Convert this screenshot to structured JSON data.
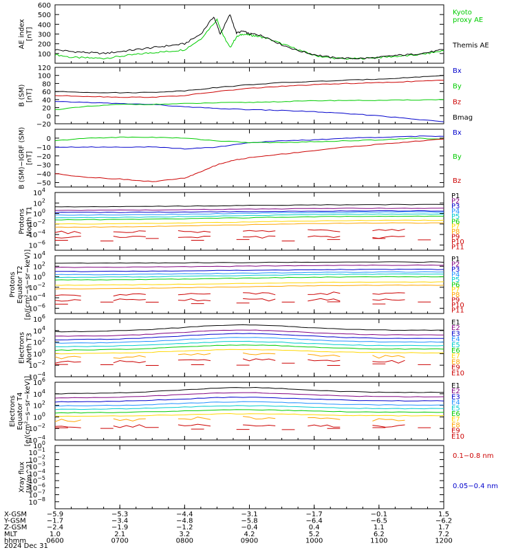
{
  "chart_data": [
    {
      "type": "line",
      "ylabel_lines": [
        "AE index",
        "[nT]"
      ],
      "ylim": [
        0,
        600
      ],
      "yticks": [
        100,
        200,
        300,
        400,
        500,
        600
      ],
      "ytick_labels": [
        "100",
        "200",
        "300",
        "400",
        "500",
        "600"
      ],
      "legend_placement": "right",
      "series": [
        {
          "name": "Kyoto proxy AE",
          "label_lines": [
            "Kyoto",
            "proxy AE"
          ],
          "color": "#00cc00",
          "x": [
            6.0,
            6.25,
            6.5,
            6.75,
            7.0,
            7.25,
            7.5,
            7.75,
            8.0,
            8.25,
            8.5,
            8.6,
            8.7,
            8.8,
            8.9,
            9.0,
            9.1,
            9.25,
            9.5,
            9.75,
            10.0,
            10.25,
            10.5,
            10.75,
            11.0,
            11.25,
            11.5,
            11.75,
            12.0
          ],
          "y": [
            90,
            60,
            55,
            50,
            70,
            90,
            110,
            120,
            140,
            250,
            450,
            280,
            160,
            270,
            300,
            290,
            280,
            260,
            200,
            140,
            80,
            55,
            45,
            50,
            60,
            70,
            80,
            100,
            130
          ]
        },
        {
          "name": "Themis AE",
          "label_lines": [
            "Themis AE"
          ],
          "color": "#000000",
          "x": [
            6.0,
            6.25,
            6.5,
            6.75,
            7.0,
            7.25,
            7.5,
            7.75,
            8.0,
            8.25,
            8.45,
            8.55,
            8.7,
            8.8,
            8.9,
            9.0,
            9.1,
            9.25,
            9.5,
            9.75,
            10.0,
            10.25,
            10.5,
            10.75,
            11.0,
            11.25,
            11.5,
            11.75,
            12.0
          ],
          "y": [
            140,
            120,
            110,
            100,
            120,
            140,
            160,
            180,
            200,
            300,
            480,
            300,
            500,
            310,
            330,
            300,
            300,
            270,
            190,
            130,
            90,
            60,
            50,
            50,
            60,
            80,
            90,
            110,
            140
          ]
        }
      ]
    },
    {
      "type": "line",
      "ylabel_lines": [
        "B (SM)",
        "[nT]"
      ],
      "ylim": [
        -20,
        120
      ],
      "yticks": [
        -20,
        0,
        20,
        40,
        60,
        80,
        100,
        120
      ],
      "ytick_labels": [
        "−20",
        "0",
        "20",
        "40",
        "60",
        "80",
        "100",
        "120"
      ],
      "legend_placement": "right",
      "series": [
        {
          "name": "Bx",
          "label_lines": [
            "Bx"
          ],
          "color": "#0000cc",
          "x": [
            6.0,
            6.5,
            7.0,
            7.5,
            8.0,
            8.5,
            9.0,
            9.5,
            10.0,
            10.5,
            11.0,
            11.5,
            12.0
          ],
          "y": [
            35,
            33,
            30,
            28,
            22,
            18,
            15,
            13,
            10,
            5,
            0,
            -8,
            -15
          ]
        },
        {
          "name": "By",
          "label_lines": [
            "By"
          ],
          "color": "#00cc00",
          "x": [
            6.0,
            6.5,
            7.0,
            7.5,
            8.0,
            8.5,
            9.0,
            9.5,
            10.0,
            10.5,
            11.0,
            11.5,
            12.0
          ],
          "y": [
            15,
            23,
            28,
            28,
            30,
            32,
            33,
            35,
            37,
            38,
            38,
            39,
            40
          ]
        },
        {
          "name": "Bz",
          "label_lines": [
            "Bz"
          ],
          "color": "#cc0000",
          "x": [
            6.0,
            6.5,
            7.0,
            7.5,
            8.0,
            8.5,
            9.0,
            9.5,
            10.0,
            10.5,
            11.0,
            11.5,
            12.0
          ],
          "y": [
            50,
            48,
            46,
            46,
            50,
            60,
            68,
            73,
            77,
            80,
            82,
            85,
            88
          ]
        },
        {
          "name": "Bmag",
          "label_lines": [
            "Bmag"
          ],
          "color": "#000000",
          "x": [
            6.0,
            6.5,
            7.0,
            7.5,
            8.0,
            8.5,
            9.0,
            9.5,
            10.0,
            10.5,
            11.0,
            11.5,
            12.0
          ],
          "y": [
            60,
            58,
            57,
            58,
            62,
            70,
            77,
            82,
            85,
            88,
            91,
            95,
            100
          ]
        }
      ]
    },
    {
      "type": "line",
      "ylabel_lines": [
        "B (SM)−IGRF (SM)",
        "[nT]"
      ],
      "ylim": [
        -55,
        10
      ],
      "yticks": [
        -50,
        -40,
        -30,
        -20,
        -10,
        0
      ],
      "ytick_labels": [
        "−50",
        "−40",
        "−30",
        "−20",
        "−10",
        "0"
      ],
      "legend_placement": "right",
      "series": [
        {
          "name": "Bx",
          "label_lines": [
            "Bx"
          ],
          "color": "#0000cc",
          "x": [
            6.0,
            6.5,
            7.0,
            7.5,
            8.0,
            8.5,
            9.0,
            9.5,
            10.0,
            10.5,
            11.0,
            11.5,
            12.0
          ],
          "y": [
            -10,
            -10,
            -10,
            -10,
            -12,
            -10,
            -5,
            -3,
            -2,
            0,
            1,
            2,
            2
          ]
        },
        {
          "name": "By",
          "label_lines": [
            "By"
          ],
          "color": "#00cc00",
          "x": [
            6.0,
            6.5,
            7.0,
            7.5,
            8.0,
            8.5,
            9.0,
            9.5,
            10.0,
            10.5,
            11.0,
            11.5,
            12.0
          ],
          "y": [
            -3,
            0,
            1,
            1,
            0,
            -3,
            -5,
            -5,
            -4,
            -3,
            -2,
            0,
            -1
          ]
        },
        {
          "name": "Bz",
          "label_lines": [
            "Bz"
          ],
          "color": "#cc0000",
          "x": [
            6.0,
            6.5,
            7.0,
            7.5,
            8.0,
            8.25,
            8.5,
            8.75,
            9.0,
            9.5,
            10.0,
            10.5,
            11.0,
            11.5,
            12.0
          ],
          "y": [
            -40,
            -44,
            -46,
            -49,
            -45,
            -38,
            -30,
            -25,
            -22,
            -18,
            -14,
            -10,
            -7,
            -4,
            -1
          ]
        }
      ]
    },
    {
      "type": "line",
      "ylabel_lines": [
        "Protons",
        "North T1"
      ],
      "log_scale": true,
      "ylim_exponents": [
        -7,
        4
      ],
      "tick_exponents": [
        4,
        2,
        0,
        -2,
        -4,
        -6
      ],
      "ytick_labels": [
        "10",
        "10",
        "10",
        "10",
        "10",
        "10"
      ],
      "ytick_superscripts": [
        "4",
        "2",
        "0",
        "−2",
        "−4",
        "−6"
      ],
      "legend_placement": "right",
      "channel_names": [
        "P1",
        "P2",
        "P3",
        "P4",
        "P5",
        "P6",
        "P7",
        "P8",
        "P9",
        "P10",
        "P11"
      ],
      "channel_colors": [
        "#000000",
        "#800080",
        "#0000cc",
        "#1e90ff",
        "#00cccc",
        "#00cc00",
        "#ffd700",
        "#ffa500",
        "#cc0000",
        "#cc0000",
        "#cc0000"
      ],
      "channel_log_levels": [
        [
          1.3,
          1.7
        ],
        [
          0.6,
          1.0
        ],
        [
          0.2,
          0.5
        ],
        [
          -0.3,
          0.3
        ],
        [
          -0.8,
          -0.1
        ],
        [
          -1.2,
          -0.5
        ],
        [
          -2.0,
          -1.3
        ],
        [
          -2.6,
          -1.8
        ],
        [
          -3.6,
          -3.2
        ],
        [
          -4.5,
          -4.5
        ],
        [
          -5.0,
          -5.0
        ]
      ]
    },
    {
      "type": "line",
      "ylabel_lines": [
        "Protons",
        "Equator T2",
        "[p/(cm²−s−sr−keV)]"
      ],
      "log_scale": true,
      "ylim_exponents": [
        -7,
        4
      ],
      "tick_exponents": [
        4,
        2,
        0,
        -2,
        -4,
        -6
      ],
      "ytick_labels": [
        "10",
        "10",
        "10",
        "10",
        "10",
        "10"
      ],
      "ytick_superscripts": [
        "4",
        "2",
        "0",
        "−2",
        "−4",
        "−6"
      ],
      "legend_placement": "right",
      "channel_names": [
        "P1",
        "P2",
        "P3",
        "P4",
        "P5",
        "P6",
        "P7",
        "P8",
        "P9",
        "P10",
        "P11"
      ],
      "channel_colors": [
        "#000000",
        "#800080",
        "#0000cc",
        "#1e90ff",
        "#00cccc",
        "#00cc00",
        "#ffd700",
        "#ffa500",
        "#cc0000",
        "#cc0000",
        "#cc0000"
      ],
      "channel_log_levels": [
        [
          2.6,
          2.8
        ],
        [
          1.8,
          2.2
        ],
        [
          1.0,
          1.4
        ],
        [
          0.4,
          0.9
        ],
        [
          -0.1,
          0.5
        ],
        [
          -0.6,
          0.0
        ],
        [
          -1.6,
          -1.0
        ],
        [
          -2.3,
          -1.6
        ],
        [
          -3.5,
          -3.1
        ],
        [
          -4.4,
          -4.4
        ],
        [
          -5.0,
          -5.0
        ]
      ]
    },
    {
      "type": "line",
      "ylabel_lines": [
        "Electrons",
        "North T3"
      ],
      "log_scale": true,
      "ylim_exponents": [
        -4,
        6
      ],
      "tick_exponents": [
        6,
        4,
        2,
        0,
        -2,
        -4
      ],
      "ytick_labels": [
        "10",
        "10",
        "10",
        "10",
        "10",
        "10"
      ],
      "ytick_superscripts": [
        "6",
        "4",
        "2",
        "0",
        "−2",
        "−4"
      ],
      "legend_placement": "right",
      "channel_names": [
        "E1",
        "E2",
        "E3",
        "E4",
        "E5",
        "E6",
        "E7",
        "E8",
        "E9",
        "E10"
      ],
      "channel_colors": [
        "#000000",
        "#800080",
        "#0000cc",
        "#1e90ff",
        "#00cccc",
        "#00cc00",
        "#ffd700",
        "#ffa500",
        "#cc0000",
        "#cc0000"
      ],
      "channel_log_levels": [
        [
          3.8,
          5.1
        ],
        [
          3.0,
          4.2
        ],
        [
          2.4,
          3.6
        ],
        [
          1.8,
          2.9
        ],
        [
          1.2,
          2.2
        ],
        [
          0.6,
          1.6
        ],
        [
          0.0,
          0.8
        ],
        [
          -0.7,
          0.0
        ],
        [
          -1.5,
          -1.0
        ],
        [
          -1.8,
          -1.8
        ]
      ]
    },
    {
      "type": "line",
      "ylabel_lines": [
        "Electrons",
        "Equator T4",
        "[e/(cm²−s−sr−keV)]"
      ],
      "log_scale": true,
      "ylim_exponents": [
        -4,
        6
      ],
      "tick_exponents": [
        6,
        4,
        2,
        0,
        -2,
        -4
      ],
      "ytick_labels": [
        "10",
        "10",
        "10",
        "10",
        "10",
        "10"
      ],
      "ytick_superscripts": [
        "6",
        "4",
        "2",
        "0",
        "−2",
        "−4"
      ],
      "legend_placement": "right",
      "channel_names": [
        "E1",
        "E2",
        "E3",
        "E4",
        "E5",
        "E6",
        "E7",
        "E8",
        "E9",
        "E10"
      ],
      "channel_colors": [
        "#000000",
        "#800080",
        "#0000cc",
        "#1e90ff",
        "#00cccc",
        "#00cc00",
        "#ffd700",
        "#ffa500",
        "#cc0000",
        "#cc0000"
      ],
      "channel_log_levels": [
        [
          4.0,
          5.2
        ],
        [
          3.3,
          4.3
        ],
        [
          2.6,
          3.5
        ],
        [
          1.9,
          2.7
        ],
        [
          1.3,
          2.0
        ],
        [
          0.7,
          1.3
        ],
        [
          0.1,
          0.6
        ],
        [
          -0.6,
          -0.1
        ],
        [
          -1.7,
          -1.3
        ],
        [
          -2.0,
          -2.0
        ]
      ]
    },
    {
      "type": "line",
      "ylabel_lines": [
        "Xray flux",
        "[W/m^2]"
      ],
      "log_scale": true,
      "ylim_exponents": [
        -9,
        0
      ],
      "tick_exponents": [
        0,
        -1,
        -2,
        -3,
        -4,
        -5,
        -6,
        -7,
        -8
      ],
      "ytick_labels": [
        "10",
        "10",
        "10",
        "10",
        "10",
        "10",
        "10",
        "10",
        "10"
      ],
      "ytick_superscripts": [
        "0",
        "−1",
        "−2",
        "−3",
        "−4",
        "−5",
        "−6",
        "−7",
        "−8"
      ],
      "legend_placement": "right",
      "series": [
        {
          "name": "0.1−0.8 nm",
          "label_lines": [
            "0.1−0.8 nm"
          ],
          "color": "#cc0000",
          "x": [],
          "y": []
        },
        {
          "name": "0.05−0.4 nm",
          "label_lines": [
            "0.05−0.4 nm"
          ],
          "color": "#0000cc",
          "x": [],
          "y": []
        }
      ]
    }
  ],
  "time_axis": {
    "xlim": [
      6.0,
      12.0
    ],
    "ticks": [
      6.0,
      7.0,
      8.0,
      9.0,
      10.0,
      11.0,
      12.0
    ]
  },
  "ephemeris": {
    "rows": [
      {
        "name": "X-GSM",
        "values": [
          "−5.9",
          "−5.3",
          "−4.4",
          "−3.1",
          "−1.7",
          "−0.1",
          "1.5"
        ]
      },
      {
        "name": "Y-GSM",
        "values": [
          "−1.7",
          "−3.4",
          "−4.8",
          "−5.8",
          "−6.4",
          "−6.5",
          "−6.2"
        ]
      },
      {
        "name": "Z-GSM",
        "values": [
          "−2.4",
          "−1.9",
          "−1.2",
          "−0.4",
          "0.4",
          "1.1",
          "1.7"
        ]
      },
      {
        "name": "MLT",
        "values": [
          "1.0",
          "2.1",
          "3.2",
          "4.2",
          "5.2",
          "6.2",
          "7.2"
        ]
      },
      {
        "name": "hhmm",
        "values": [
          "0600",
          "0700",
          "0800",
          "0900",
          "1000",
          "1100",
          "1200"
        ]
      }
    ],
    "date": "2024 Dec 31"
  }
}
